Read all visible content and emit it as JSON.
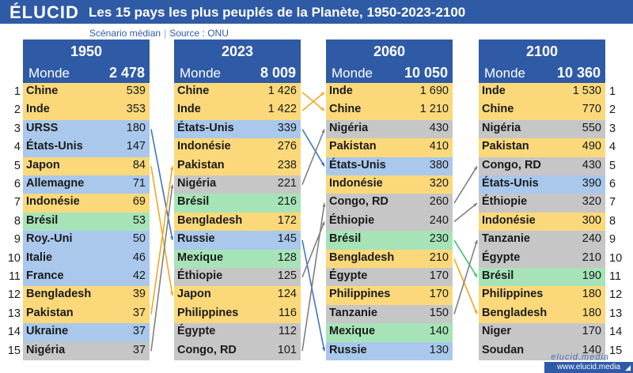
{
  "brand": "ÉLUCID",
  "title": "Les 15 pays les plus peuplés de la Planète, 1950-2023-2100",
  "scenario": "Scénario médian",
  "source": "Source : ONU",
  "footer": "www.elucid.media",
  "watermark": "elucid.media",
  "colors": {
    "header": "#2f5aa6",
    "Asie": "#fbd97a",
    "Amérique du Nord / Europe": "#a9c8ec",
    "Afrique": "#c6c6c6",
    "Amérique latine": "#a6e4b8",
    "link_orange": "#f0a822",
    "link_blue": "#3f75c2",
    "link_gray": "#808080",
    "link_green": "#3cc474"
  },
  "chart_data": {
    "type": "table",
    "ranks": [
      "1",
      "2",
      "3",
      "4",
      "5",
      "6",
      "7",
      "8",
      "9",
      "10",
      "11",
      "12",
      "13",
      "14",
      "15"
    ],
    "world_label": "Monde",
    "columns": [
      {
        "year": "1950",
        "world": "2 478",
        "rows": [
          {
            "name": "Chine",
            "value": "539",
            "region": "Asie"
          },
          {
            "name": "Inde",
            "value": "353",
            "region": "Asie"
          },
          {
            "name": "URSS",
            "value": "180",
            "region": "Amérique du Nord / Europe"
          },
          {
            "name": "États-Unis",
            "value": "147",
            "region": "Amérique du Nord / Europe"
          },
          {
            "name": "Japon",
            "value": "84",
            "region": "Asie"
          },
          {
            "name": "Allemagne",
            "value": "71",
            "region": "Amérique du Nord / Europe"
          },
          {
            "name": "Indonésie",
            "value": "69",
            "region": "Asie"
          },
          {
            "name": "Brésil",
            "value": "53",
            "region": "Amérique latine"
          },
          {
            "name": "Roy.-Uni",
            "value": "50",
            "region": "Amérique du Nord / Europe"
          },
          {
            "name": "Italie",
            "value": "46",
            "region": "Amérique du Nord / Europe"
          },
          {
            "name": "France",
            "value": "42",
            "region": "Amérique du Nord / Europe"
          },
          {
            "name": "Bengladesh",
            "value": "39",
            "region": "Asie"
          },
          {
            "name": "Pakistan",
            "value": "37",
            "region": "Asie"
          },
          {
            "name": "Ukraine",
            "value": "37",
            "region": "Amérique du Nord / Europe"
          },
          {
            "name": "Nigéria",
            "value": "37",
            "region": "Afrique"
          }
        ]
      },
      {
        "year": "2023",
        "world": "8 009",
        "rows": [
          {
            "name": "Chine",
            "value": "1 426",
            "region": "Asie"
          },
          {
            "name": "Inde",
            "value": "1 422",
            "region": "Asie"
          },
          {
            "name": "États-Unis",
            "value": "339",
            "region": "Amérique du Nord / Europe"
          },
          {
            "name": "Indonésie",
            "value": "276",
            "region": "Asie"
          },
          {
            "name": "Pakistan",
            "value": "238",
            "region": "Asie"
          },
          {
            "name": "Nigéria",
            "value": "221",
            "region": "Afrique"
          },
          {
            "name": "Brésil",
            "value": "216",
            "region": "Amérique latine"
          },
          {
            "name": "Bengladesh",
            "value": "172",
            "region": "Asie"
          },
          {
            "name": "Russie",
            "value": "145",
            "region": "Amérique du Nord / Europe"
          },
          {
            "name": "Mexique",
            "value": "128",
            "region": "Amérique latine"
          },
          {
            "name": "Éthiopie",
            "value": "125",
            "region": "Afrique"
          },
          {
            "name": "Japon",
            "value": "124",
            "region": "Asie"
          },
          {
            "name": "Philippines",
            "value": "116",
            "region": "Asie"
          },
          {
            "name": "Égypte",
            "value": "112",
            "region": "Afrique"
          },
          {
            "name": "Congo, RD",
            "value": "101",
            "region": "Afrique"
          }
        ]
      },
      {
        "year": "2060",
        "world": "10 050",
        "rows": [
          {
            "name": "Inde",
            "value": "1 690",
            "region": "Asie"
          },
          {
            "name": "Chine",
            "value": "1 210",
            "region": "Asie"
          },
          {
            "name": "Nigéria",
            "value": "430",
            "region": "Afrique"
          },
          {
            "name": "Pakistan",
            "value": "410",
            "region": "Asie"
          },
          {
            "name": "États-Unis",
            "value": "380",
            "region": "Amérique du Nord / Europe"
          },
          {
            "name": "Indonésie",
            "value": "320",
            "region": "Asie"
          },
          {
            "name": "Congo, RD",
            "value": "260",
            "region": "Afrique"
          },
          {
            "name": "Éthiopie",
            "value": "240",
            "region": "Afrique"
          },
          {
            "name": "Brésil",
            "value": "230",
            "region": "Amérique latine"
          },
          {
            "name": "Bengladesh",
            "value": "210",
            "region": "Asie"
          },
          {
            "name": "Égypte",
            "value": "170",
            "region": "Afrique"
          },
          {
            "name": "Philippines",
            "value": "170",
            "region": "Asie"
          },
          {
            "name": "Tanzanie",
            "value": "150",
            "region": "Afrique"
          },
          {
            "name": "Mexique",
            "value": "140",
            "region": "Amérique latine"
          },
          {
            "name": "Russie",
            "value": "130",
            "region": "Amérique du Nord / Europe"
          }
        ]
      },
      {
        "year": "2100",
        "world": "10 360",
        "rows": [
          {
            "name": "Inde",
            "value": "1 530",
            "region": "Asie"
          },
          {
            "name": "Chine",
            "value": "770",
            "region": "Asie"
          },
          {
            "name": "Nigéria",
            "value": "550",
            "region": "Afrique"
          },
          {
            "name": "Pakistan",
            "value": "490",
            "region": "Asie"
          },
          {
            "name": "Congo, RD",
            "value": "430",
            "region": "Afrique"
          },
          {
            "name": "États-Unis",
            "value": "390",
            "region": "Amérique du Nord / Europe"
          },
          {
            "name": "Éthiopie",
            "value": "320",
            "region": "Afrique"
          },
          {
            "name": "Indonésie",
            "value": "300",
            "region": "Asie"
          },
          {
            "name": "Tanzanie",
            "value": "240",
            "region": "Afrique"
          },
          {
            "name": "Égypte",
            "value": "210",
            "region": "Afrique"
          },
          {
            "name": "Brésil",
            "value": "190",
            "region": "Amérique latine"
          },
          {
            "name": "Philippines",
            "value": "180",
            "region": "Asie"
          },
          {
            "name": "Bengladesh",
            "value": "180",
            "region": "Asie"
          },
          {
            "name": "Niger",
            "value": "170",
            "region": "Afrique"
          },
          {
            "name": "Soudan",
            "value": "140",
            "region": "Afrique"
          }
        ]
      }
    ],
    "links": [
      {
        "from_col": 0,
        "from_rank": 3,
        "to_col": 1,
        "to_rank": 9,
        "color": "link_blue"
      },
      {
        "from_col": 0,
        "from_rank": 5,
        "to_col": 1,
        "to_rank": 12,
        "color": "link_orange"
      },
      {
        "from_col": 0,
        "from_rank": 13,
        "to_col": 1,
        "to_rank": 5,
        "color": "link_orange"
      },
      {
        "from_col": 0,
        "from_rank": 15,
        "to_col": 1,
        "to_rank": 6,
        "color": "link_gray"
      },
      {
        "from_col": 1,
        "from_rank": 1,
        "to_col": 2,
        "to_rank": 2,
        "color": "link_orange"
      },
      {
        "from_col": 1,
        "from_rank": 2,
        "to_col": 2,
        "to_rank": 1,
        "color": "link_orange"
      },
      {
        "from_col": 1,
        "from_rank": 3,
        "to_col": 2,
        "to_rank": 5,
        "color": "link_blue"
      },
      {
        "from_col": 1,
        "from_rank": 6,
        "to_col": 2,
        "to_rank": 3,
        "color": "link_gray"
      },
      {
        "from_col": 1,
        "from_rank": 9,
        "to_col": 2,
        "to_rank": 15,
        "color": "link_blue"
      },
      {
        "from_col": 1,
        "from_rank": 11,
        "to_col": 2,
        "to_rank": 8,
        "color": "link_gray"
      },
      {
        "from_col": 1,
        "from_rank": 15,
        "to_col": 2,
        "to_rank": 7,
        "color": "link_gray"
      },
      {
        "from_col": 2,
        "from_rank": 7,
        "to_col": 3,
        "to_rank": 5,
        "color": "link_gray"
      },
      {
        "from_col": 2,
        "from_rank": 8,
        "to_col": 3,
        "to_rank": 7,
        "color": "link_gray"
      },
      {
        "from_col": 2,
        "from_rank": 9,
        "to_col": 3,
        "to_rank": 11,
        "color": "link_green"
      },
      {
        "from_col": 2,
        "from_rank": 10,
        "to_col": 3,
        "to_rank": 13,
        "color": "link_orange"
      },
      {
        "from_col": 2,
        "from_rank": 13,
        "to_col": 3,
        "to_rank": 9,
        "color": "link_gray"
      }
    ]
  }
}
